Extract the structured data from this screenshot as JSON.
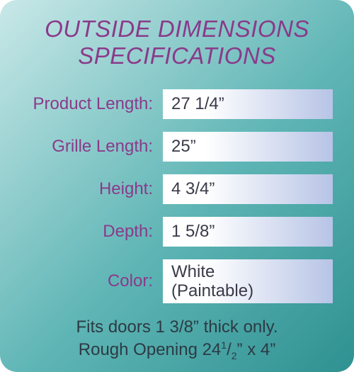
{
  "title_line1": "OUTSIDE DIMENSIONS",
  "title_line2": "SPECIFICATIONS",
  "colors": {
    "accent_text": "#8a3a8a",
    "panel_gradient_start": "#c9e8e8",
    "panel_gradient_mid": "#5fb5b5",
    "panel_gradient_end": "#2f9191",
    "value_gradient_start": "#ffffff",
    "value_gradient_end": "#b7c4e6",
    "footer_text": "#2c3a44"
  },
  "typography": {
    "title_fontsize": 33,
    "title_style": "italic",
    "label_fontsize": 24,
    "value_fontsize": 24,
    "footer_fontsize": 24
  },
  "layout": {
    "panel_radius": 24,
    "label_width": 200,
    "value_row_height": 42,
    "row_gap": 18
  },
  "rows": [
    {
      "label": "Product Length:",
      "value": "27 1/4”"
    },
    {
      "label": "Grille Length:",
      "value": "25”"
    },
    {
      "label": "Height:",
      "value": "4 3/4”"
    },
    {
      "label": "Depth:",
      "value": "1 5/8”"
    },
    {
      "label": "Color:",
      "value": "White\n(Paintable)",
      "tall": true
    }
  ],
  "footer": {
    "line1": "Fits doors 1 3/8” thick only.",
    "line2_prefix": "Rough Opening 24",
    "line2_frac_num": "1",
    "line2_frac_den": "2",
    "line2_suffix": "” x 4”"
  }
}
